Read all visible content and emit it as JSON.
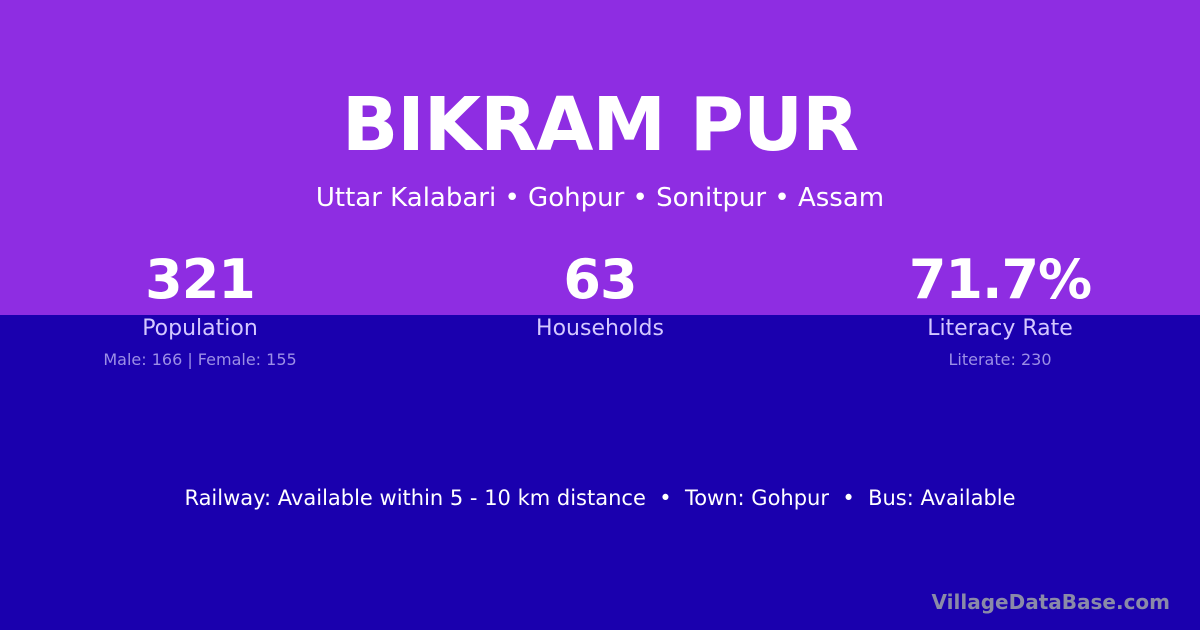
{
  "village": {
    "name": "BIKRAM PUR",
    "location": "Uttar Kalabari • Gohpur • Sonitpur • Assam"
  },
  "stats": [
    {
      "value": "321",
      "label": "Population",
      "detail": "Male: 166 | Female: 155"
    },
    {
      "value": "63",
      "label": "Households",
      "detail": ""
    },
    {
      "value": "71.7%",
      "label": "Literacy Rate",
      "detail": "Literate: 230"
    }
  ],
  "facts": "Railway: Available within 5 - 10 km distance  •  Town: Gohpur  •  Bus: Available",
  "brand": "VillageDataBase.com",
  "colors": {
    "top": "#8e2de2",
    "bottom": "#1a00ae"
  }
}
